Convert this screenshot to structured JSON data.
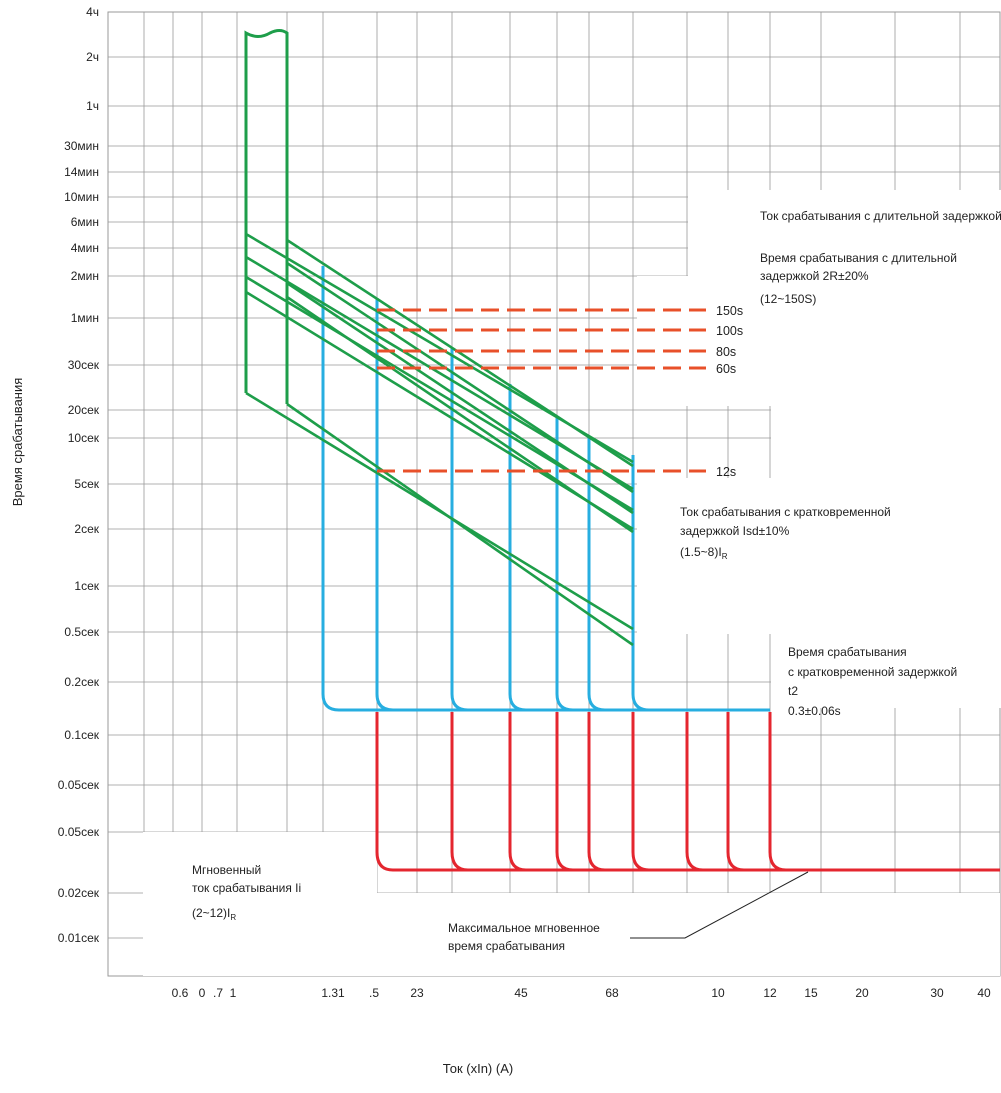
{
  "chart_data": {
    "type": "line",
    "title": "",
    "xlabel": "Ток (xIn) (A)",
    "ylabel": "Время срабатывания",
    "grid": true,
    "y_ticks": [
      "4ч",
      "2ч",
      "1ч",
      "30мин",
      "14мин",
      "10мин",
      "6мин",
      "4мин",
      "2мин",
      "1мин",
      "30сек",
      "20сек",
      "10сек",
      "5сек",
      "2сек",
      "1сек",
      "0.5сек",
      "0.2сек",
      "0.1сек",
      "0.05сек",
      "0.05сек",
      "0.02сек",
      "0.01сек"
    ],
    "x_ticks": [
      "0.6",
      "0",
      ".7",
      "1",
      "1.31",
      ".5",
      "23",
      "45",
      "68",
      "10",
      "12",
      "15",
      "20",
      "30",
      "40"
    ],
    "long_delay_settings": [
      "150s",
      "100s",
      "80s",
      "60s"
    ],
    "short_delay_setting": "12s",
    "annotations": {
      "long_delay_current": "Ток срабатывания с длительной задержкой по времени IR",
      "long_delay_time_1": "Время срабатывания с длительной",
      "long_delay_time_2": "задержкой 2R±20%",
      "long_delay_range": "(12~150S)",
      "short_delay_current_1": "Ток срабатывания с кратковременной",
      "short_delay_current_2": "задержкой Isd±10%",
      "short_delay_range": "(1.5~8)I",
      "short_delay_range_sub": "R",
      "short_delay_time_1": "Время срабатывания",
      "short_delay_time_2": "с кратковременной задержкой",
      "short_delay_time_3": "t2",
      "short_delay_time_4": "0.3±0.06s",
      "instant_1": "Мгновенный",
      "instant_2": "ток срабатывания Ii",
      "instant_range": "(2~12)I",
      "instant_range_sub": "R",
      "max_instant_1": "Максимальное мгновенное",
      "max_instant_2": "время срабатывания"
    },
    "series": [
      {
        "name": "Ток срабатывания с длительной задержкой по времени IR",
        "color": "#1e9e4a"
      },
      {
        "name": "Ток срабатывания с кратковременной задержкой Isd±10%",
        "color": "#27aee0"
      },
      {
        "name": "Мгновенный ток срабатывания Ii",
        "color": "#e4262f"
      },
      {
        "name": "Время срабатывания с длительной задержкой 2R±20%",
        "color": "#e8502a"
      }
    ],
    "colors": {
      "grid": "#999999",
      "long_delay": "#1e9e4a",
      "short_delay": "#27aee0",
      "instant": "#e4262f",
      "setting_dash": "#e8502a"
    }
  }
}
